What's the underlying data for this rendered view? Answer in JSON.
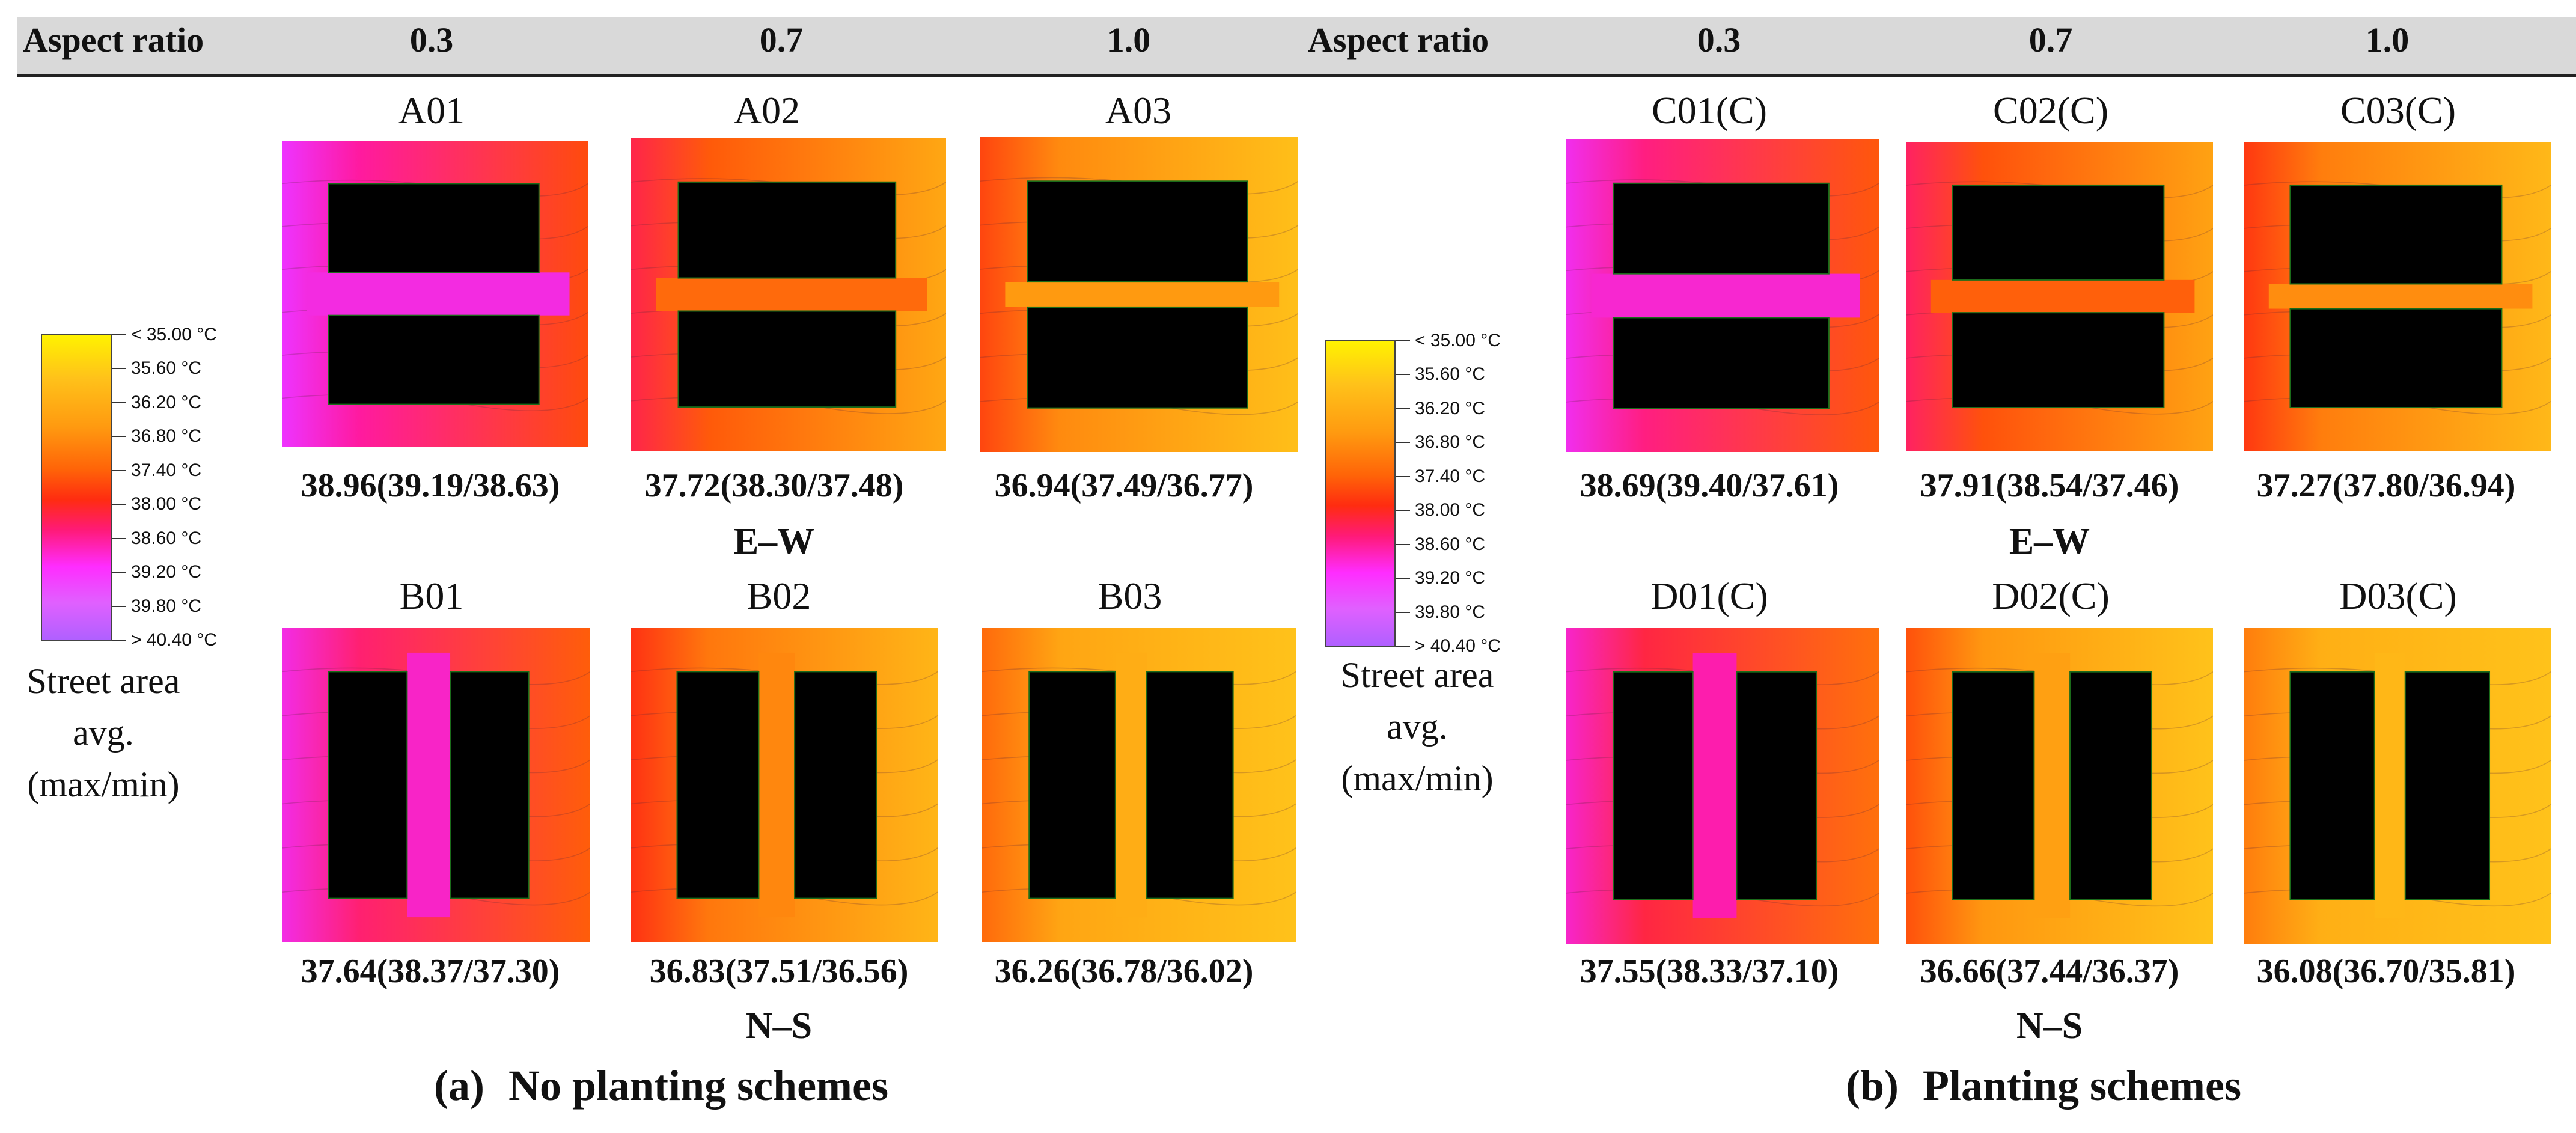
{
  "header": {
    "aspect_ratio_label": "Aspect ratio",
    "ratios": [
      "0.3",
      "0.7",
      "1.0"
    ]
  },
  "legend": {
    "items": [
      "< 35.00 °C",
      "35.60  °C",
      "36.20  °C",
      "36.80  °C",
      "37.40  °C",
      "38.00  °C",
      "38.60  °C",
      "39.20  °C",
      "39.80  °C",
      "> 40.40 °C"
    ],
    "note": [
      "Street area",
      "avg.",
      "(max/min)"
    ]
  },
  "orientations": {
    "top": "E–W",
    "bottom": "N–S"
  },
  "panel_a": {
    "caption_letter": "(a)",
    "caption_text": "No planting schemes",
    "top_cells": [
      {
        "label": "A01",
        "value": "38.96(39.19/38.63)",
        "layout": "ew",
        "ratio": 0.3,
        "heat": 0.78
      },
      {
        "label": "A02",
        "value": "37.72(38.30/37.48)",
        "layout": "ew",
        "ratio": 0.7,
        "heat": 0.45
      },
      {
        "label": "A03",
        "value": "36.94(37.49/36.77)",
        "layout": "ew",
        "ratio": 1.0,
        "heat": 0.3
      }
    ],
    "bottom_cells": [
      {
        "label": "B01",
        "value": "37.64(38.37/37.30)",
        "layout": "ns",
        "ratio": 0.3,
        "heat": 0.72
      },
      {
        "label": "B02",
        "value": "36.83(37.51/36.56)",
        "layout": "ns",
        "ratio": 0.7,
        "heat": 0.36
      },
      {
        "label": "B03",
        "value": "36.26(36.78/36.02)",
        "layout": "ns",
        "ratio": 1.0,
        "heat": 0.18
      }
    ]
  },
  "panel_b": {
    "caption_letter": "(b)",
    "caption_text": "Planting schemes",
    "top_cells": [
      {
        "label": "C01(C)",
        "value": "38.69(39.40/37.61)",
        "layout": "ew",
        "ratio": 0.3,
        "heat": 0.74
      },
      {
        "label": "C02(C)",
        "value": "37.91(38.54/37.46)",
        "layout": "ew",
        "ratio": 0.7,
        "heat": 0.48
      },
      {
        "label": "C03(C)",
        "value": "37.27(37.80/36.94)",
        "layout": "ew",
        "ratio": 1.0,
        "heat": 0.34
      }
    ],
    "bottom_cells": [
      {
        "label": "D01(C)",
        "value": "37.55(38.33/37.10)",
        "layout": "ns",
        "ratio": 0.3,
        "heat": 0.66
      },
      {
        "label": "D02(C)",
        "value": "36.66(37.44/36.37)",
        "layout": "ns",
        "ratio": 0.7,
        "heat": 0.26
      },
      {
        "label": "D03(C)",
        "value": "36.08(36.70/35.81)",
        "layout": "ns",
        "ratio": 1.0,
        "heat": 0.12
      }
    ]
  }
}
